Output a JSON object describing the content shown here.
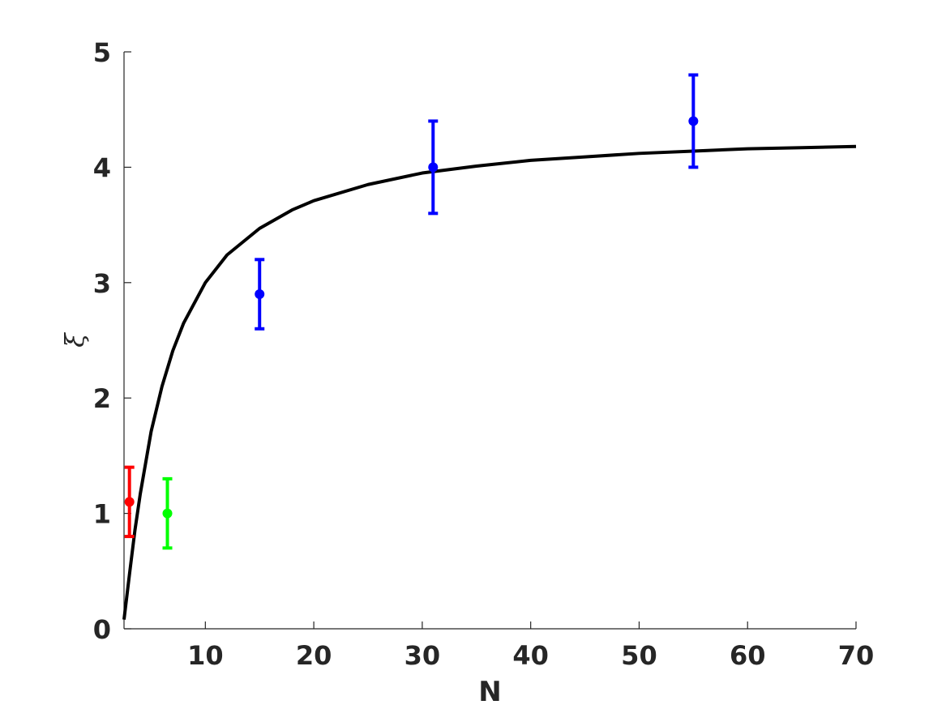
{
  "chart_data": {
    "type": "scatter",
    "title": "",
    "xlabel": "N",
    "ylabel": "ξ",
    "xlim": [
      2.5,
      70
    ],
    "ylim": [
      0,
      5
    ],
    "xticks": [
      10,
      20,
      30,
      40,
      50,
      60,
      70
    ],
    "yticks": [
      0,
      1,
      2,
      3,
      4,
      5
    ],
    "grid": false,
    "legend": "none",
    "points": [
      {
        "x": 3,
        "y": 1.1,
        "err": 0.3,
        "color": "#ff0000"
      },
      {
        "x": 6.5,
        "y": 1.0,
        "err": 0.3,
        "color": "#00ff00"
      },
      {
        "x": 15,
        "y": 2.9,
        "err": 0.3,
        "color": "#0000ff"
      },
      {
        "x": 31,
        "y": 4.0,
        "err": 0.4,
        "color": "#0000ff"
      },
      {
        "x": 55,
        "y": 4.4,
        "err": 0.4,
        "color": "#0000ff"
      }
    ],
    "curve": {
      "color": "#000000",
      "x": [
        2.5,
        3,
        3.5,
        4,
        5,
        6,
        7,
        8,
        10,
        12,
        15,
        18,
        20,
        25,
        30,
        35,
        40,
        45,
        50,
        55,
        60,
        65,
        70
      ],
      "y": [
        0.08,
        0.47,
        0.85,
        1.17,
        1.71,
        2.1,
        2.41,
        2.65,
        3.0,
        3.24,
        3.47,
        3.63,
        3.71,
        3.85,
        3.95,
        4.01,
        4.06,
        4.09,
        4.12,
        4.14,
        4.16,
        4.17,
        4.18
      ]
    }
  }
}
